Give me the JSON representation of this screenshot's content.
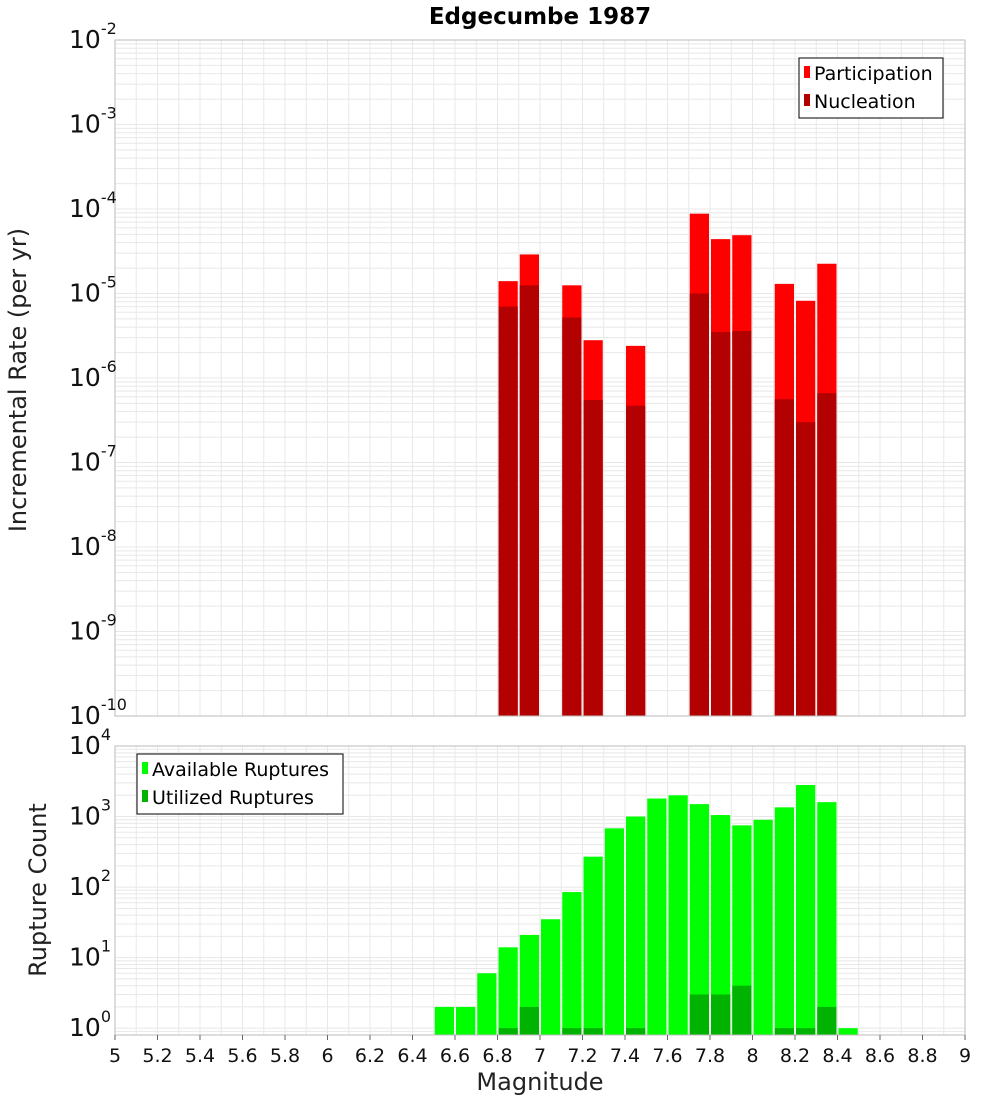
{
  "chart_data": [
    {
      "type": "bar",
      "title": "Edgecumbe 1987",
      "xlabel": "",
      "ylabel": "Incremental Rate (per yr)",
      "yscale": "log",
      "ylim": [
        1e-10,
        0.01
      ],
      "xlim": [
        5,
        9
      ],
      "grid": true,
      "legend_position": "top-right",
      "x": [
        6.85,
        6.95,
        7.15,
        7.25,
        7.45,
        7.75,
        7.85,
        7.95,
        8.15,
        8.25,
        8.35
      ],
      "series": [
        {
          "name": "Participation",
          "color": "#ff0000",
          "values": [
            1.4e-05,
            2.9e-05,
            1.25e-05,
            2.8e-06,
            2.4e-06,
            8.8e-05,
            4.4e-05,
            4.9e-05,
            1.3e-05,
            8.2e-06,
            2.25e-05
          ]
        },
        {
          "name": "Nucleation",
          "color": "#b30000",
          "values": [
            7e-06,
            1.25e-05,
            5.2e-06,
            5.5e-07,
            4.7e-07,
            1e-05,
            3.5e-06,
            3.6e-06,
            5.6e-07,
            3e-07,
            6.6e-07
          ]
        }
      ]
    },
    {
      "type": "bar",
      "title": "",
      "xlabel": "Magnitude",
      "ylabel": "Rupture Count",
      "yscale": "log",
      "ylim": [
        0.8,
        10000
      ],
      "xlim": [
        5,
        9
      ],
      "grid": true,
      "legend_position": "top-left",
      "x": [
        6.55,
        6.65,
        6.75,
        6.85,
        6.95,
        7.05,
        7.15,
        7.25,
        7.35,
        7.45,
        7.55,
        7.65,
        7.75,
        7.85,
        7.95,
        8.05,
        8.15,
        8.25,
        8.35,
        8.45
      ],
      "series": [
        {
          "name": "Available Ruptures",
          "color": "#00ff00",
          "values": [
            2,
            2,
            6,
            14,
            21,
            35,
            85,
            270,
            680,
            1000,
            1800,
            2000,
            1500,
            1050,
            750,
            900,
            1350,
            2800,
            1600,
            1
          ]
        },
        {
          "name": "Utilized Ruptures",
          "color": "#00b300",
          "values": [
            0,
            0,
            0,
            1,
            2,
            0,
            1,
            1,
            0,
            1,
            0,
            0,
            3,
            3,
            4,
            0,
            1,
            1,
            2,
            0
          ]
        }
      ]
    }
  ],
  "x_ticks": [
    "5",
    "5.2",
    "5.4",
    "5.6",
    "5.8",
    "6",
    "6.2",
    "6.4",
    "6.6",
    "6.8",
    "7",
    "7.2",
    "7.4",
    "7.6",
    "7.8",
    "8",
    "8.2",
    "8.4",
    "8.6",
    "8.8",
    "9"
  ],
  "colors": {
    "grid": "#e8e8e8",
    "frame": "#bbbbbb"
  }
}
